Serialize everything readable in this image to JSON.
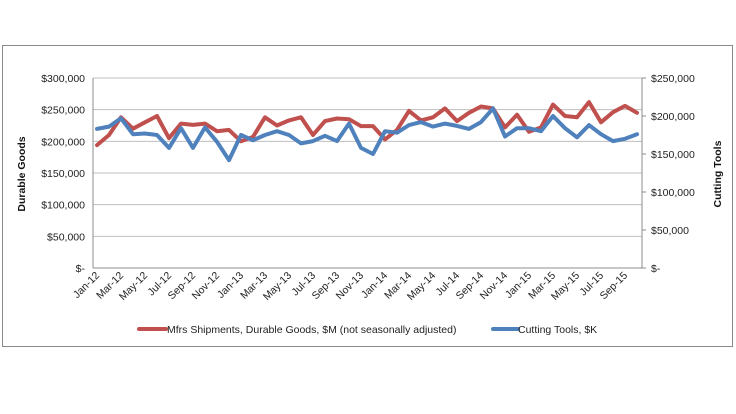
{
  "chart_data": {
    "type": "line",
    "title": "",
    "ylabel_left": "Durable Goods",
    "ylabel_right": "Cutting Tools",
    "xlabel": "",
    "ylim_left": [
      0,
      300000
    ],
    "ylim_right": [
      0,
      250000
    ],
    "yticks_left": [
      "$-",
      "$50,000",
      "$100,000",
      "$150,000",
      "$200,000",
      "$250,000",
      "$300,000"
    ],
    "yticks_left_values": [
      0,
      50000,
      100000,
      150000,
      200000,
      250000,
      300000
    ],
    "yticks_right": [
      "$-",
      "$50,000",
      "$100,000",
      "$150,000",
      "$200,000",
      "$250,000"
    ],
    "yticks_right_values": [
      0,
      50000,
      100000,
      150000,
      200000,
      250000
    ],
    "grid": true,
    "legend_position": "bottom",
    "x": [
      "Jan-12",
      "Feb-12",
      "Mar-12",
      "Apr-12",
      "May-12",
      "Jun-12",
      "Jul-12",
      "Aug-12",
      "Sep-12",
      "Oct-12",
      "Nov-12",
      "Dec-12",
      "Jan-13",
      "Feb-13",
      "Mar-13",
      "Apr-13",
      "May-13",
      "Jun-13",
      "Jul-13",
      "Aug-13",
      "Sep-13",
      "Oct-13",
      "Nov-13",
      "Dec-13",
      "Jan-14",
      "Feb-14",
      "Mar-14",
      "Apr-14",
      "May-14",
      "Jun-14",
      "Jul-14",
      "Aug-14",
      "Sep-14",
      "Oct-14",
      "Nov-14",
      "Dec-14",
      "Jan-15",
      "Feb-15",
      "Mar-15",
      "Apr-15",
      "May-15",
      "Jun-15",
      "Jul-15",
      "Aug-15",
      "Sep-15",
      "Oct-15"
    ],
    "xtick_labels_shown": [
      "Jan-12",
      "Mar-12",
      "May-12",
      "Jul-12",
      "Sep-12",
      "Nov-12",
      "Jan-13",
      "Mar-13",
      "May-13",
      "Jul-13",
      "Sep-13",
      "Nov-13",
      "Jan-14",
      "Mar-14",
      "May-14",
      "Jul-14",
      "Sep-14",
      "Nov-14",
      "Jan-15",
      "Mar-15",
      "May-15",
      "Jul-15",
      "Sep-15"
    ],
    "series": [
      {
        "name": "Mfrs Shipments, Durable Goods, $M (not seasonally adjusted)",
        "axis": "left",
        "color": "#c0504d",
        "values": [
          194000,
          210000,
          238000,
          220000,
          230000,
          240000,
          205000,
          228000,
          226000,
          228000,
          216000,
          218000,
          200000,
          207000,
          238000,
          225000,
          233000,
          238000,
          210000,
          232000,
          236000,
          235000,
          224000,
          224000,
          203000,
          218000,
          248000,
          233000,
          238000,
          252000,
          232000,
          245000,
          255000,
          252000,
          222000,
          242000,
          215000,
          222000,
          258000,
          240000,
          238000,
          262000,
          230000,
          246000,
          256000,
          245000
        ]
      },
      {
        "name": "Cutting Tools, $K",
        "axis": "right",
        "color": "#4f81bd",
        "values": [
          183000,
          186000,
          197000,
          176000,
          177000,
          175000,
          158000,
          184000,
          158000,
          185000,
          166000,
          142000,
          175000,
          168000,
          175000,
          180000,
          175000,
          164000,
          167000,
          174000,
          167000,
          190000,
          158000,
          150000,
          180000,
          178000,
          188000,
          192000,
          186000,
          190000,
          187000,
          183000,
          192000,
          210000,
          173000,
          184000,
          184000,
          180000,
          200000,
          184000,
          172000,
          188000,
          176000,
          167000,
          170000,
          176000
        ]
      }
    ]
  }
}
